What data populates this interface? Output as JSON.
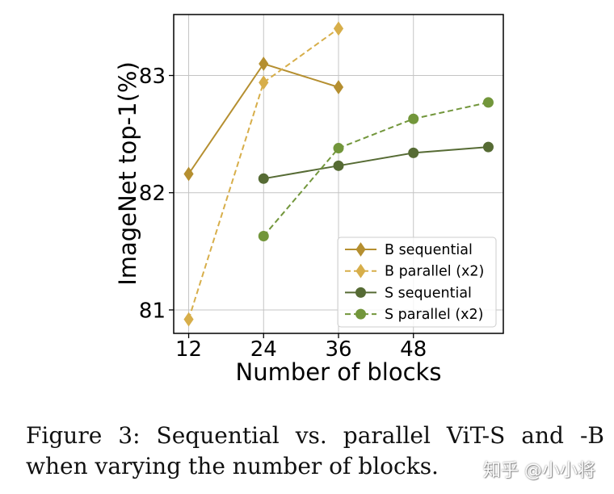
{
  "chart_data": {
    "type": "line",
    "title": "",
    "xlabel": "Number of blocks",
    "ylabel": "ImageNet top-1(%)",
    "xlim": [
      9.6,
      62.4
    ],
    "ylim": [
      80.8,
      83.52
    ],
    "xticks": [
      12,
      24,
      36,
      48
    ],
    "yticks": [
      81,
      82,
      83
    ],
    "grid": true,
    "legend_position": "lower-right",
    "series": [
      {
        "name": "B sequential",
        "x": [
          12,
          24,
          36
        ],
        "y": [
          82.16,
          83.1,
          82.9
        ],
        "color": "#b58f30",
        "marker": "diamond",
        "dashed": false
      },
      {
        "name": "B parallel (x2)",
        "x": [
          12,
          24,
          36
        ],
        "y": [
          80.92,
          82.94,
          83.4
        ],
        "color": "#d7ae4a",
        "marker": "diamond",
        "dashed": true
      },
      {
        "name": "S sequential",
        "x": [
          24,
          36,
          48,
          60
        ],
        "y": [
          82.12,
          82.23,
          82.34,
          82.39
        ],
        "color": "#566b34",
        "marker": "circle",
        "dashed": false
      },
      {
        "name": "S parallel (x2)",
        "x": [
          24,
          36,
          48,
          60
        ],
        "y": [
          81.63,
          82.38,
          82.63,
          82.77
        ],
        "color": "#72963b",
        "marker": "circle",
        "dashed": true
      }
    ]
  },
  "caption": {
    "label": "Figure 3:",
    "line1": "Sequential vs. parallel ViT-S and -B",
    "line2": "when varying the number of blocks."
  },
  "watermark": "知乎 @小小将"
}
